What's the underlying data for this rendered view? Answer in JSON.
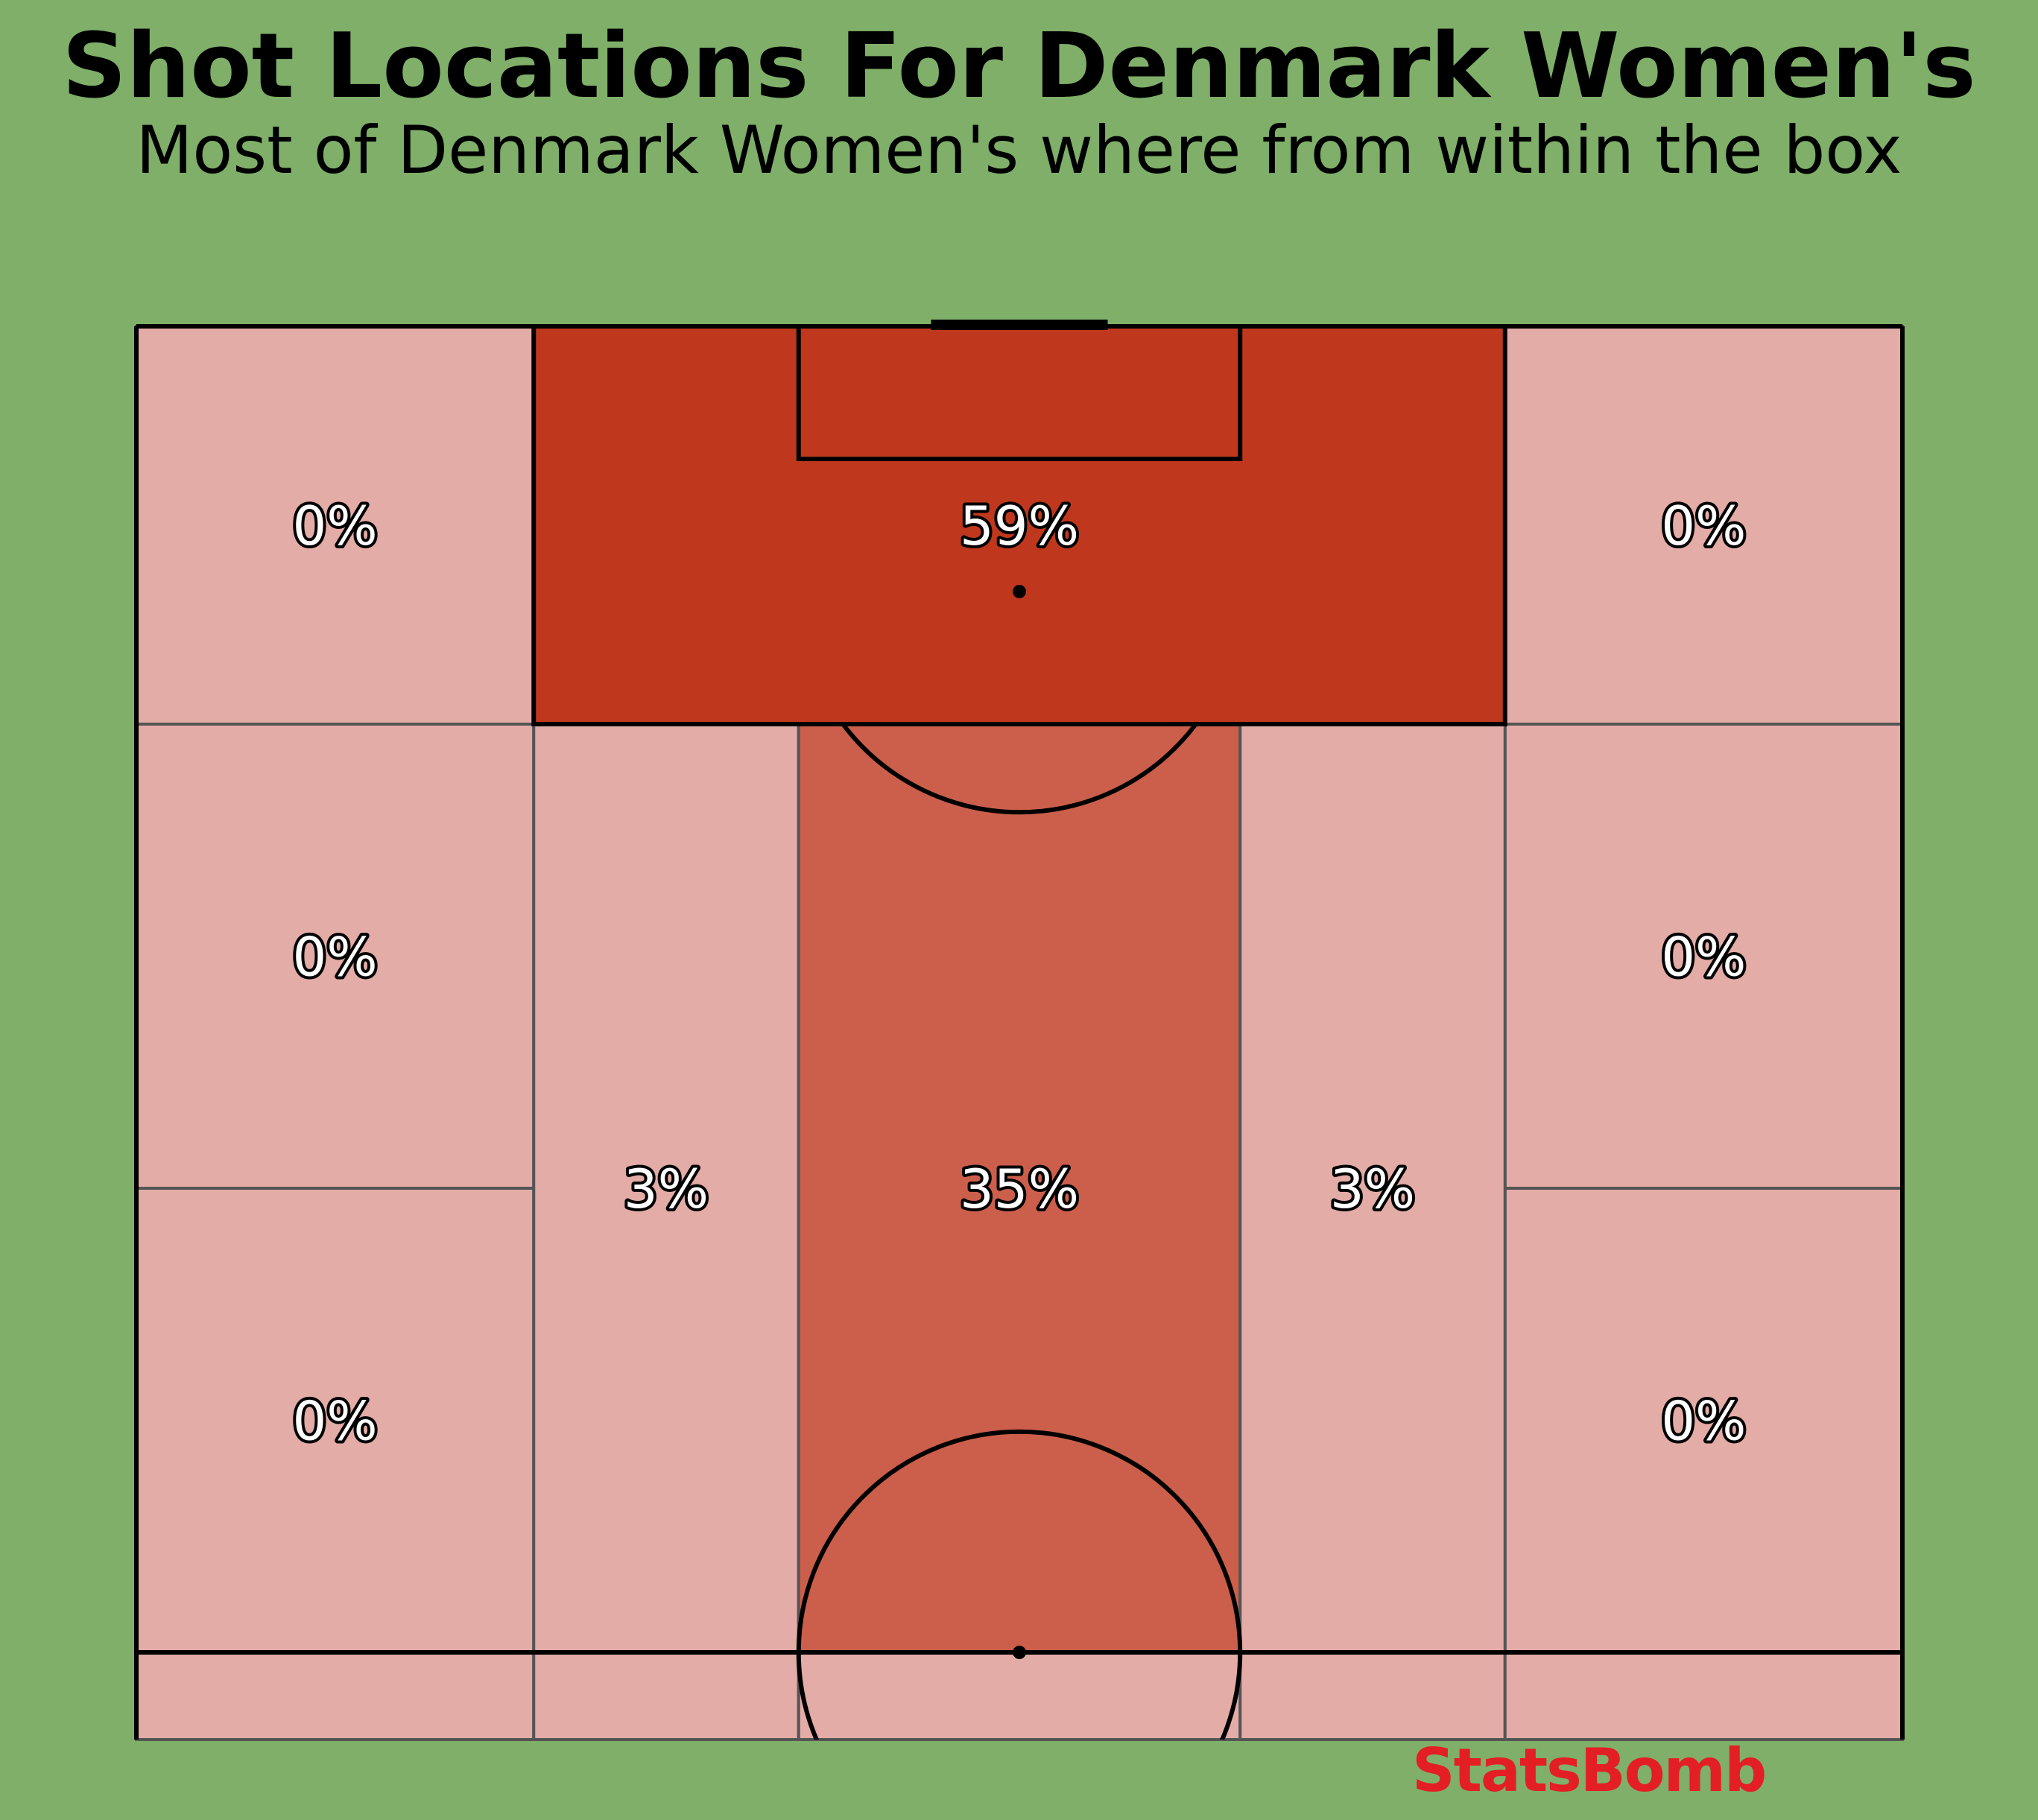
{
  "header": {
    "title": "Shot Locations For Denmark Women's",
    "subtitle": "Most of Denmark Women's where from within the box"
  },
  "branding": {
    "logo_text": "StatsBomb"
  },
  "colors": {
    "background": "#7faf69",
    "zero": "#e3aca7",
    "low": "#e3aca7",
    "mid": "#cc5f4b",
    "high": "#bf381d",
    "line": "#000000",
    "zone_line": "#555555",
    "logo": "#e31e24"
  },
  "chart_data": {
    "type": "heatmap",
    "title": "Shot Locations For Denmark Women's",
    "subtitle": "Most of Denmark Women's where from within the box",
    "pitch": "statsbomb-half-vertical",
    "value_unit": "% of shots",
    "zones": [
      {
        "zone": "left-wide-top",
        "x": [
          0,
          18
        ],
        "y": [
          102,
          120
        ],
        "value": 0,
        "label": "0%"
      },
      {
        "zone": "penalty-box",
        "x": [
          18,
          62
        ],
        "y": [
          102,
          120
        ],
        "value": 59,
        "label": "59%"
      },
      {
        "zone": "right-wide-top",
        "x": [
          62,
          80
        ],
        "y": [
          102,
          120
        ],
        "value": 0,
        "label": "0%"
      },
      {
        "zone": "left-wide-mid",
        "x": [
          0,
          18
        ],
        "y": [
          81,
          102
        ],
        "value": 0,
        "label": "0%"
      },
      {
        "zone": "right-wide-mid",
        "x": [
          62,
          80
        ],
        "y": [
          81,
          102
        ],
        "value": 0,
        "label": "0%"
      },
      {
        "zone": "left-wide-bottom",
        "x": [
          0,
          18
        ],
        "y": [
          60,
          81
        ],
        "value": 0,
        "label": "0%"
      },
      {
        "zone": "right-wide-bottom",
        "x": [
          62,
          80
        ],
        "y": [
          60,
          81
        ],
        "value": 0,
        "label": "0%"
      },
      {
        "zone": "left-half-space",
        "x": [
          18,
          30
        ],
        "y": [
          60,
          102
        ],
        "value": 3,
        "label": "3%"
      },
      {
        "zone": "central",
        "x": [
          30,
          50
        ],
        "y": [
          60,
          102
        ],
        "value": 35,
        "label": "35%"
      },
      {
        "zone": "right-half-space",
        "x": [
          50,
          62
        ],
        "y": [
          60,
          102
        ],
        "value": 3,
        "label": "3%"
      }
    ]
  }
}
